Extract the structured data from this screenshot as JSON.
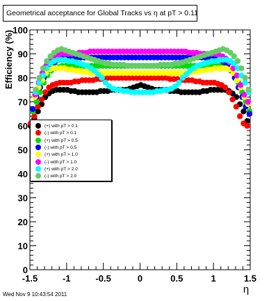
{
  "title": "Geometrical acceptance for Global Tracks vs    η at pT > 0.11",
  "footer": "Wed Nov  9 10:43:54 2011",
  "legend": [
    {
      "label": "(+) with pT > 0.1",
      "color": "#000000"
    },
    {
      "label": "(-) with pT > 0.1",
      "color": "#ff0000"
    },
    {
      "label": "(+) with pT > 0.5",
      "color": "#00dd00"
    },
    {
      "label": "(-) with pT > 0.5",
      "color": "#0000ff"
    },
    {
      "label": "(+) with pT > 1.0",
      "color": "#ffff00"
    },
    {
      "label": "(-) with pT > 1.0",
      "color": "#ff00ff"
    },
    {
      "label": "(+) with pT > 2.0",
      "color": "#00ffff"
    },
    {
      "label": "(-) with pT > 2.0",
      "color": "#66cc66"
    }
  ],
  "chart_data": {
    "type": "scatter",
    "title": "Geometrical acceptance for Global Tracks vs    η at pT > 0.11",
    "xlabel": "η",
    "ylabel": "Efficiency (%)",
    "xlim": [
      -1.5,
      1.5
    ],
    "ylim": [
      0,
      100
    ],
    "x_ticks": [
      -1.5,
      -1,
      -0.5,
      0,
      0.5,
      1,
      1.5
    ],
    "x_tick_labels": [
      "-1.5",
      "-1",
      "-0.5",
      "0",
      "0.5",
      "1",
      "1.5"
    ],
    "y_ticks": [
      0,
      10,
      20,
      30,
      40,
      50,
      60,
      70,
      80,
      90,
      100
    ],
    "y_tick_labels": [
      "0",
      "10",
      "20",
      "30",
      "40",
      "50",
      "60",
      "70",
      "80",
      "90",
      "100"
    ],
    "legend_position": "left-middle",
    "grid": false,
    "series": [
      {
        "name": "(+) with pT > 0.1",
        "color": "#000000",
        "x": [
          -1.49,
          -1.44,
          -1.39,
          -1.34,
          -1.29,
          -1.24,
          -1.19,
          -1.14,
          -1.09,
          -1.04,
          -0.99,
          -0.94,
          -0.89,
          -0.84,
          -0.79,
          -0.74,
          -0.69,
          -0.64,
          -0.59,
          -0.54,
          -0.49,
          -0.44,
          -0.39,
          -0.34,
          -0.29,
          -0.24,
          -0.19,
          -0.14,
          -0.09,
          -0.04,
          0.01,
          0.06,
          0.11,
          0.16,
          0.21,
          0.26,
          0.31,
          0.36,
          0.41,
          0.46,
          0.51,
          0.56,
          0.61,
          0.66,
          0.71,
          0.76,
          0.81,
          0.86,
          0.91,
          0.96,
          1.01,
          1.06,
          1.11,
          1.16,
          1.21,
          1.26,
          1.31,
          1.36,
          1.41,
          1.46
        ],
        "y": [
          60,
          63,
          66,
          69,
          72,
          73.5,
          74.5,
          75,
          75,
          75,
          75,
          74.5,
          74.5,
          74,
          74,
          74,
          74,
          74,
          74,
          74.5,
          74.5,
          74.5,
          75,
          75,
          75,
          75,
          75,
          75.5,
          76,
          76.5,
          77,
          76.5,
          76,
          75.5,
          75,
          75,
          75,
          75,
          74.5,
          74.5,
          74.5,
          74,
          74,
          74,
          74,
          74,
          74,
          74.5,
          74.5,
          75,
          75,
          75,
          75,
          75,
          74.5,
          73.5,
          72,
          69,
          66,
          62
        ]
      },
      {
        "name": "(-) with pT > 0.1",
        "color": "#ff0000",
        "x": [
          -1.49,
          -1.44,
          -1.39,
          -1.34,
          -1.29,
          -1.24,
          -1.19,
          -1.14,
          -1.09,
          -1.04,
          -0.99,
          -0.94,
          -0.89,
          -0.84,
          -0.79,
          -0.74,
          -0.69,
          -0.64,
          -0.59,
          -0.54,
          -0.49,
          -0.44,
          -0.39,
          -0.34,
          -0.29,
          -0.24,
          -0.19,
          -0.14,
          -0.09,
          -0.04,
          0.01,
          0.06,
          0.11,
          0.16,
          0.21,
          0.26,
          0.31,
          0.36,
          0.41,
          0.46,
          0.51,
          0.56,
          0.61,
          0.66,
          0.71,
          0.76,
          0.81,
          0.86,
          0.91,
          0.96,
          1.01,
          1.06,
          1.11,
          1.16,
          1.21,
          1.26,
          1.31,
          1.36,
          1.41,
          1.46
        ],
        "y": [
          61,
          64,
          68,
          71,
          74,
          76,
          77,
          77.5,
          78,
          78,
          78,
          78,
          78.5,
          78.5,
          79,
          79,
          79,
          79,
          79.5,
          79.5,
          79.5,
          80,
          80,
          80,
          80,
          80,
          80,
          80,
          80,
          80,
          80,
          80,
          80,
          80,
          80,
          80,
          80,
          80,
          79.5,
          79.5,
          79.5,
          79,
          79,
          79,
          79,
          78.5,
          78.5,
          78,
          78,
          78,
          78,
          77.5,
          77,
          76,
          74,
          71,
          68,
          64,
          61,
          60
        ]
      },
      {
        "name": "(+) with pT > 0.5",
        "color": "#00dd00",
        "x": [
          -1.46,
          -1.41,
          -1.36,
          -1.31,
          -1.26,
          -1.21,
          -1.16,
          -1.11,
          -1.06,
          -1.01,
          -0.96,
          -0.91,
          -0.86,
          -0.81,
          -0.76,
          -0.71,
          -0.66,
          -0.61,
          -0.56,
          -0.51,
          -0.46,
          -0.41,
          -0.36,
          -0.31,
          -0.26,
          -0.21,
          -0.16,
          -0.11,
          -0.06,
          -0.01,
          0.04,
          0.09,
          0.14,
          0.19,
          0.24,
          0.29,
          0.34,
          0.39,
          0.44,
          0.49,
          0.54,
          0.59,
          0.64,
          0.69,
          0.74,
          0.79,
          0.84,
          0.89,
          0.94,
          0.99,
          1.04,
          1.09,
          1.14,
          1.19,
          1.24,
          1.29,
          1.34,
          1.39,
          1.44,
          1.49
        ],
        "y": [
          66,
          70,
          74,
          78,
          81,
          83,
          84,
          84.5,
          85,
          85,
          85,
          85,
          85,
          85,
          85,
          85,
          85,
          85,
          85,
          85,
          85,
          85,
          85,
          85,
          85,
          85,
          85,
          85,
          85,
          85,
          85,
          85,
          85,
          85,
          85,
          85,
          85,
          85,
          85,
          85,
          85,
          85,
          85,
          85,
          85,
          85,
          85,
          85,
          85,
          85,
          85,
          85,
          84.5,
          84,
          83,
          81,
          78,
          74,
          70,
          66
        ]
      },
      {
        "name": "(-) with pT > 0.5",
        "color": "#0000ff",
        "x": [
          -1.46,
          -1.41,
          -1.36,
          -1.31,
          -1.26,
          -1.21,
          -1.16,
          -1.11,
          -1.06,
          -1.01,
          -0.96,
          -0.91,
          -0.86,
          -0.81,
          -0.76,
          -0.71,
          -0.66,
          -0.61,
          -0.56,
          -0.51,
          -0.46,
          -0.41,
          -0.36,
          -0.31,
          -0.26,
          -0.21,
          -0.16,
          -0.11,
          -0.06,
          -0.01,
          0.04,
          0.09,
          0.14,
          0.19,
          0.24,
          0.29,
          0.34,
          0.39,
          0.44,
          0.49,
          0.54,
          0.59,
          0.64,
          0.69,
          0.74,
          0.79,
          0.84,
          0.89,
          0.94,
          0.99,
          1.04,
          1.09,
          1.14,
          1.19,
          1.24,
          1.29,
          1.34,
          1.39,
          1.44,
          1.49
        ],
        "y": [
          67,
          72,
          76,
          80,
          83,
          85,
          86.5,
          87.5,
          88,
          88.5,
          88.5,
          88.5,
          88.5,
          88.5,
          88.5,
          88.5,
          88.5,
          88.5,
          88.5,
          88.5,
          88.5,
          88.5,
          88.5,
          88.5,
          88.5,
          88.5,
          88.5,
          88.5,
          88.5,
          88.5,
          88.5,
          88.5,
          88.5,
          88.5,
          88.5,
          88.5,
          88.5,
          88.5,
          88.5,
          88.5,
          88.5,
          88.5,
          88.5,
          88.5,
          88.5,
          88.5,
          88.5,
          88.5,
          88.5,
          88.5,
          88,
          87.5,
          86.5,
          85,
          83,
          80,
          76,
          72,
          68,
          65
        ]
      },
      {
        "name": "(+) with pT > 1.0",
        "color": "#ffff00",
        "x": [
          -1.43,
          -1.38,
          -1.33,
          -1.28,
          -1.23,
          -1.18,
          -1.13,
          -1.08,
          -1.03,
          -0.98,
          -0.93,
          -0.88,
          -0.83,
          -0.78,
          -0.73,
          -0.68,
          -0.63,
          -0.58,
          -0.53,
          -0.48,
          -0.43,
          -0.38,
          -0.33,
          -0.28,
          -0.23,
          -0.18,
          -0.13,
          -0.08,
          -0.03,
          0.02,
          0.07,
          0.12,
          0.17,
          0.22,
          0.27,
          0.32,
          0.37,
          0.42,
          0.47,
          0.52,
          0.57,
          0.62,
          0.67,
          0.72,
          0.77,
          0.82,
          0.87,
          0.92,
          0.97,
          1.02,
          1.07,
          1.12,
          1.17,
          1.22,
          1.27,
          1.32,
          1.37,
          1.42,
          1.47
        ],
        "y": [
          72,
          76,
          79,
          82,
          83.5,
          84,
          84,
          84,
          84,
          83.5,
          83.5,
          83,
          83,
          82.5,
          82.5,
          82,
          82,
          82,
          82,
          82,
          82,
          82,
          82,
          82,
          82,
          82,
          82,
          82,
          82,
          82,
          82,
          82,
          82,
          82,
          82,
          82,
          82,
          82,
          82,
          82,
          82,
          82,
          82,
          82.5,
          82.5,
          83,
          83,
          83.5,
          83.5,
          84,
          84,
          84,
          84,
          83.5,
          82,
          79,
          76,
          72,
          69
        ]
      },
      {
        "name": "(-) with pT > 1.0",
        "color": "#ff00ff",
        "x": [
          -1.43,
          -1.38,
          -1.33,
          -1.28,
          -1.23,
          -1.18,
          -1.13,
          -1.08,
          -1.03,
          -0.98,
          -0.93,
          -0.88,
          -0.83,
          -0.78,
          -0.73,
          -0.68,
          -0.63,
          -0.58,
          -0.53,
          -0.48,
          -0.43,
          -0.38,
          -0.33,
          -0.28,
          -0.23,
          -0.18,
          -0.13,
          -0.08,
          -0.03,
          0.02,
          0.07,
          0.12,
          0.17,
          0.22,
          0.27,
          0.32,
          0.37,
          0.42,
          0.47,
          0.52,
          0.57,
          0.62,
          0.67,
          0.72,
          0.77,
          0.82,
          0.87,
          0.92,
          0.97,
          1.02,
          1.07,
          1.12,
          1.17,
          1.22,
          1.27,
          1.32,
          1.37,
          1.42,
          1.47
        ],
        "y": [
          73,
          78,
          82,
          85,
          87,
          88.5,
          89.5,
          90,
          90,
          90,
          90,
          90,
          90.5,
          90.5,
          90.5,
          91,
          91,
          91,
          91,
          91,
          91,
          91,
          91,
          91,
          91,
          91,
          91,
          91,
          91,
          91,
          91,
          91,
          91,
          91,
          91,
          91,
          91,
          91,
          91,
          91,
          91,
          91,
          90.5,
          90.5,
          90.5,
          90,
          90,
          90,
          90,
          90,
          89.5,
          89,
          88,
          86.5,
          84,
          81,
          77,
          73,
          70
        ]
      },
      {
        "name": "(+) with pT > 2.0",
        "color": "#00ffff",
        "x": [
          -1.42,
          -1.37,
          -1.32,
          -1.27,
          -1.22,
          -1.17,
          -1.12,
          -1.07,
          -1.02,
          -0.97,
          -0.92,
          -0.87,
          -0.82,
          -0.77,
          -0.72,
          -0.67,
          -0.62,
          -0.57,
          -0.52,
          -0.47,
          -0.42,
          -0.37,
          -0.32,
          -0.27,
          -0.22,
          -0.17,
          -0.12,
          -0.07,
          -0.02,
          0.03,
          0.08,
          0.13,
          0.18,
          0.23,
          0.28,
          0.33,
          0.38,
          0.43,
          0.48,
          0.53,
          0.58,
          0.63,
          0.68,
          0.73,
          0.78,
          0.83,
          0.88,
          0.93,
          0.98,
          1.03,
          1.08,
          1.13,
          1.18,
          1.23,
          1.28,
          1.33,
          1.38,
          1.43,
          1.48
        ],
        "y": [
          74,
          78,
          81,
          84,
          86,
          87,
          87.5,
          87.5,
          87.5,
          87,
          87,
          86.5,
          86,
          85.5,
          85,
          84,
          83,
          81.5,
          80,
          78,
          76.5,
          75.5,
          75,
          75,
          74.5,
          74.5,
          74,
          74,
          74,
          74,
          74,
          74,
          74,
          74.5,
          74.5,
          75,
          75,
          75.5,
          76.5,
          78,
          80,
          81.5,
          83,
          84,
          85,
          85.5,
          86,
          86.5,
          87,
          87,
          87.5,
          87.5,
          87.5,
          87,
          86,
          84,
          81,
          78,
          74
        ]
      },
      {
        "name": "(-) with pT > 2.0",
        "color": "#66cc66",
        "x": [
          -1.42,
          -1.37,
          -1.32,
          -1.27,
          -1.22,
          -1.17,
          -1.12,
          -1.07,
          -1.02,
          -0.97,
          -0.92,
          -0.87,
          -0.82,
          -0.77,
          -0.72,
          -0.67,
          -0.62,
          -0.57,
          -0.52,
          -0.47,
          -0.42,
          -0.37,
          -0.32,
          -0.27,
          -0.22,
          -0.17,
          -0.12,
          -0.07,
          -0.02,
          0.03,
          0.08,
          0.13,
          0.18,
          0.23,
          0.28,
          0.33,
          0.38,
          0.43,
          0.48,
          0.53,
          0.58,
          0.63,
          0.68,
          0.73,
          0.78,
          0.83,
          0.88,
          0.93,
          0.98,
          1.03,
          1.08,
          1.13,
          1.18,
          1.23,
          1.28,
          1.33,
          1.38,
          1.43,
          1.48
        ],
        "y": [
          75,
          80,
          84,
          87,
          89,
          90.5,
          91.5,
          92,
          91.5,
          91,
          90.5,
          90,
          89.5,
          89,
          88.5,
          88,
          87.5,
          87,
          86.5,
          86,
          86,
          85.5,
          85.5,
          85.5,
          85.5,
          85,
          85,
          85,
          85,
          85,
          85,
          85,
          85,
          85,
          85.5,
          85.5,
          85.5,
          85.5,
          86,
          86,
          86.5,
          87,
          87.5,
          88,
          88.5,
          89,
          89.5,
          90,
          90.5,
          91,
          91.5,
          92,
          91.5,
          90.5,
          89,
          87,
          84,
          80,
          75
        ]
      }
    ]
  }
}
